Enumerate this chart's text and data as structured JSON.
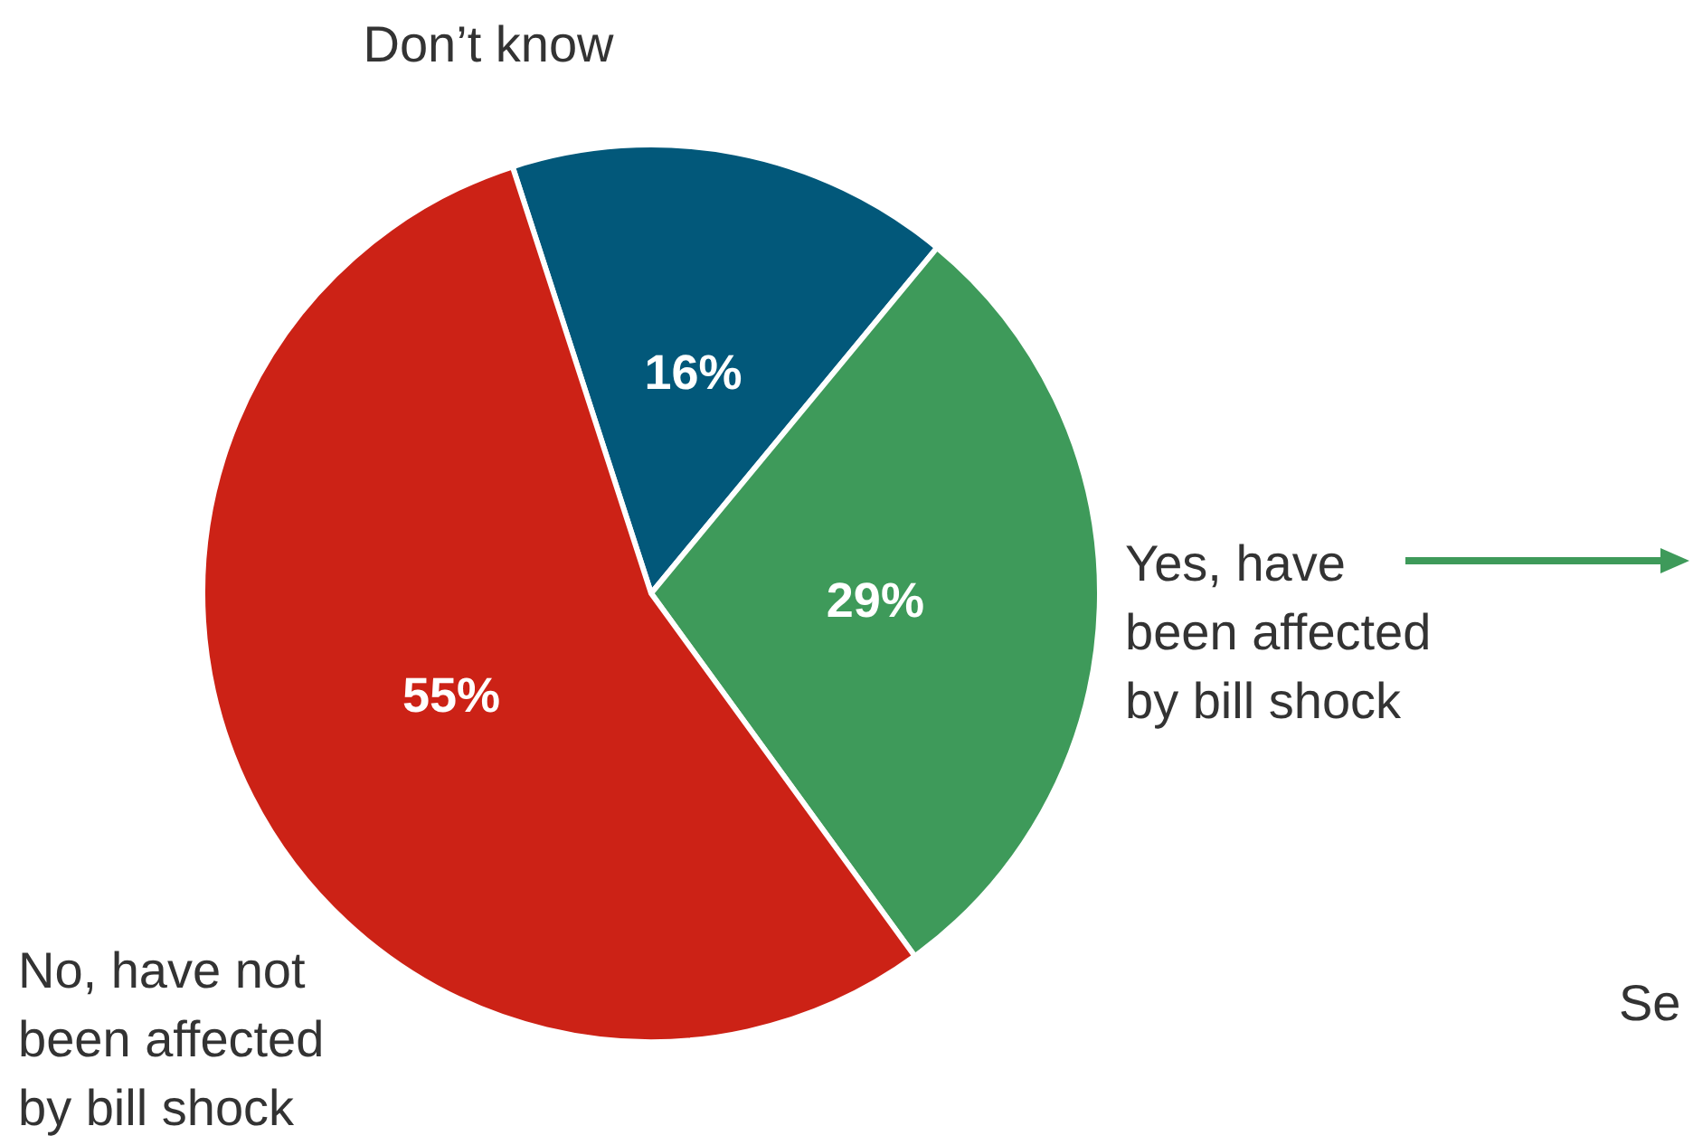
{
  "chart_data": {
    "type": "pie",
    "categories": [
      "Don’t know",
      "Yes, have been affected by bill shock",
      "No, have not been affected by bill shock"
    ],
    "values": [
      16,
      29,
      55
    ],
    "colors": [
      "#02587a",
      "#3e9a5a",
      "#cc2216"
    ],
    "value_labels": [
      "16%",
      "29%",
      "55%"
    ],
    "annotations": [
      "Se"
    ]
  }
}
